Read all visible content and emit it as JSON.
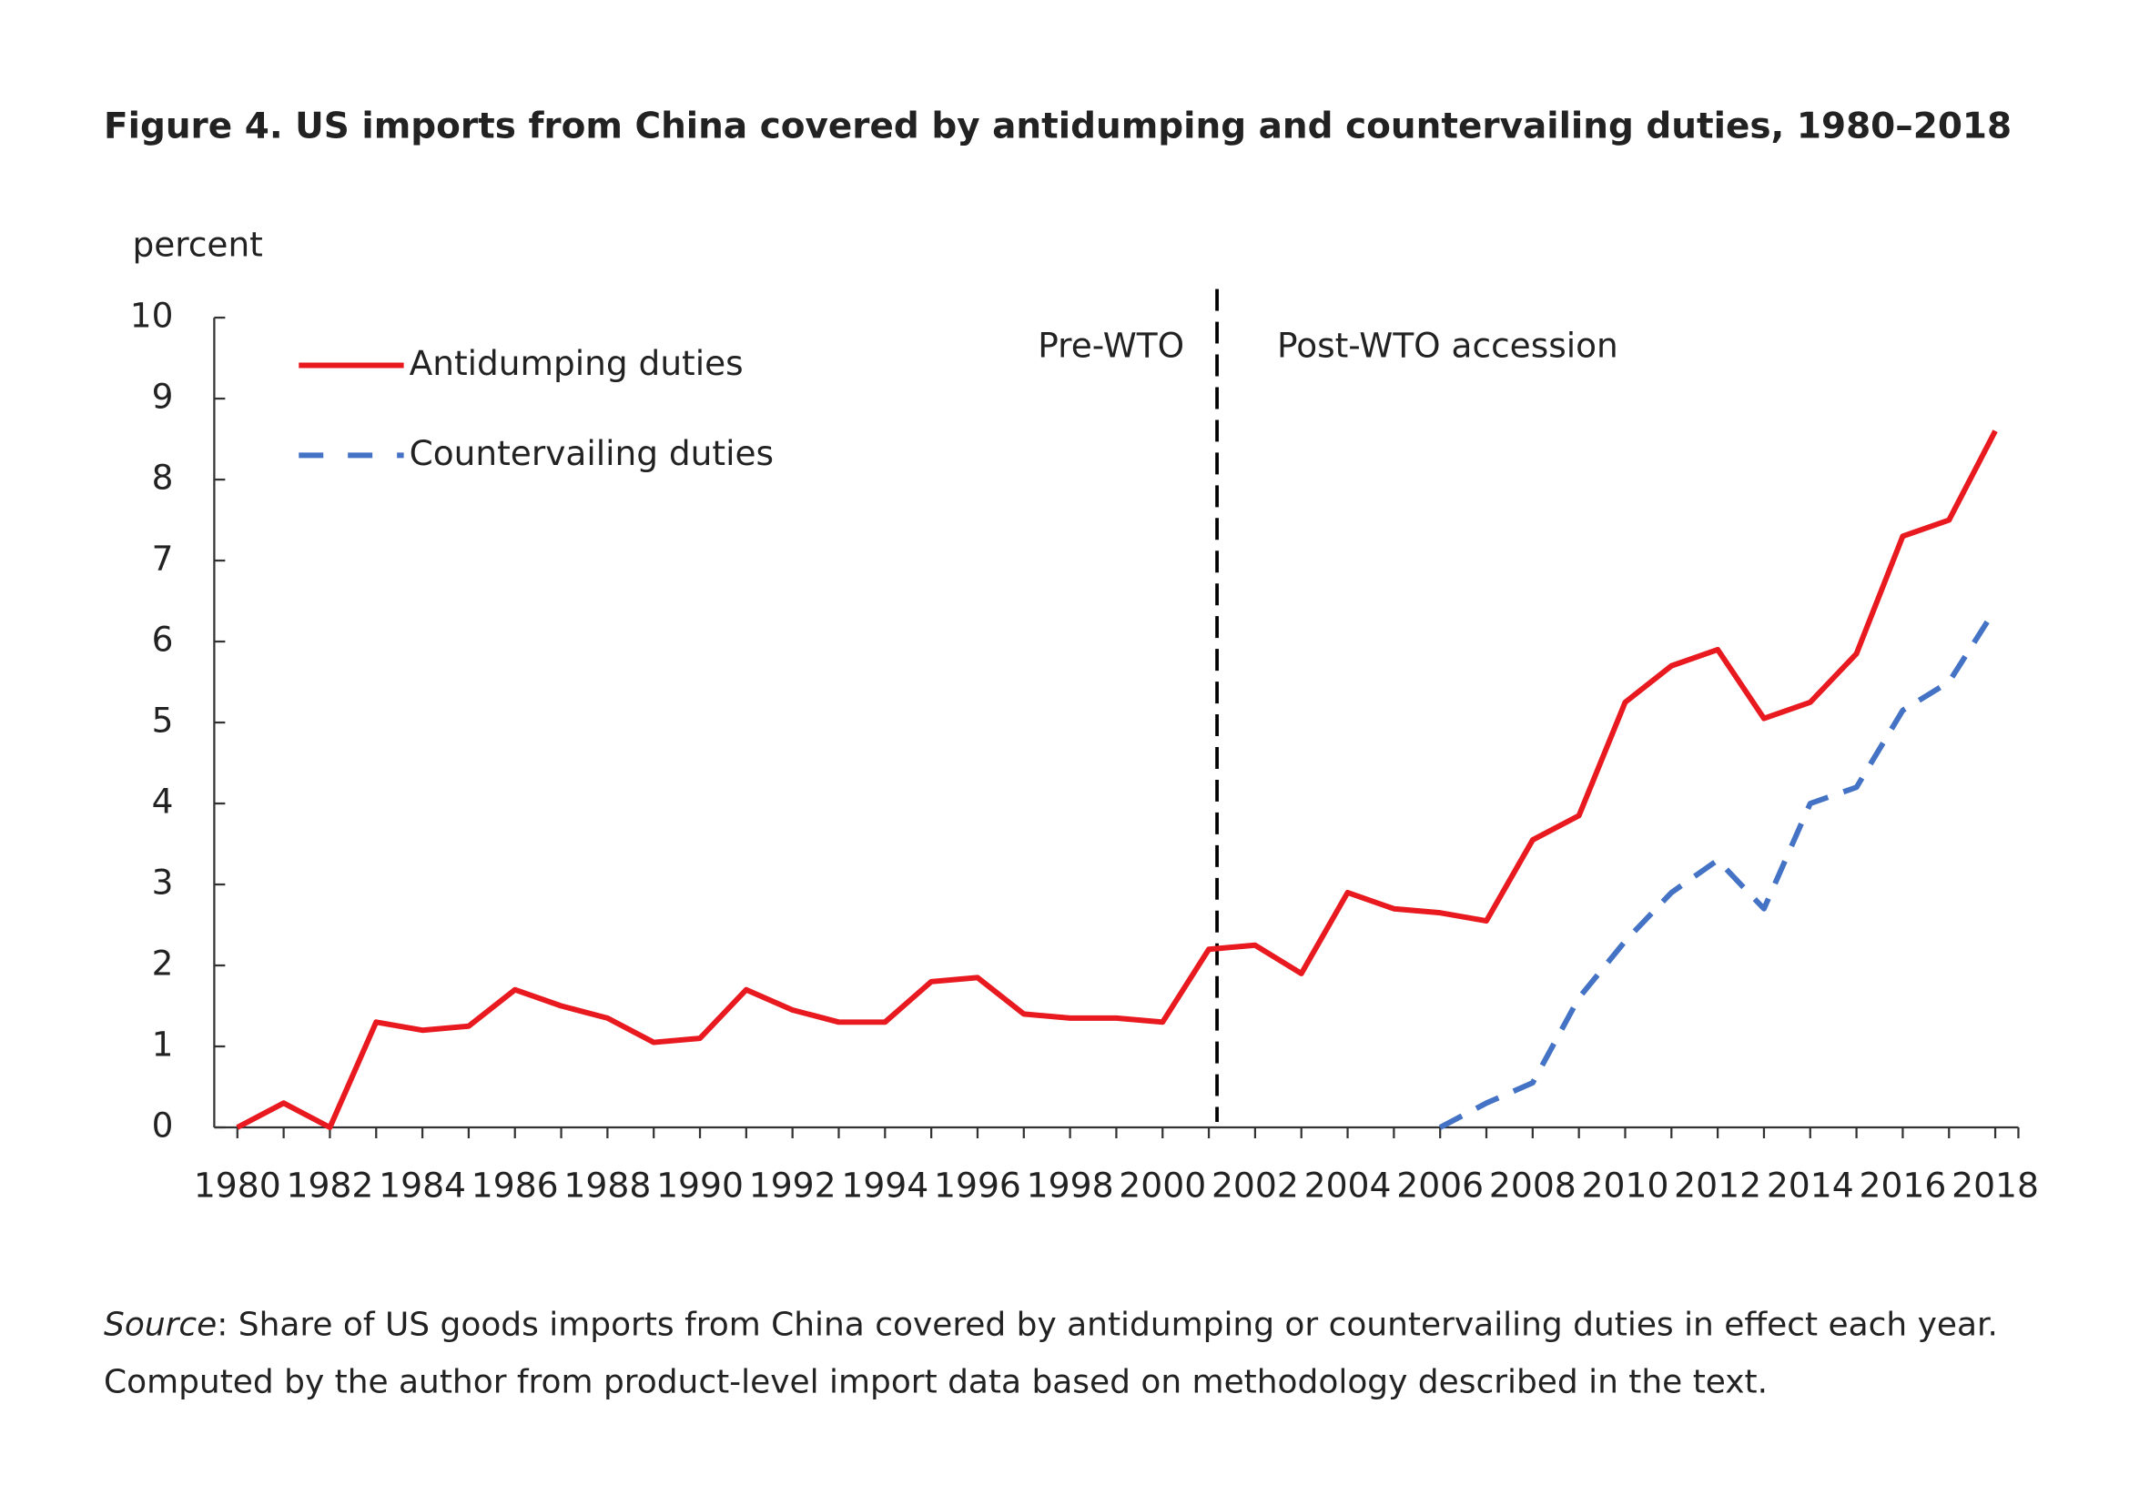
{
  "chart_data": {
    "type": "line",
    "title": "Figure 4. US imports from China covered by antidumping and countervailing duties, 1980–2018",
    "y_label": "percent",
    "x": [
      1980,
      1981,
      1982,
      1983,
      1984,
      1985,
      1986,
      1987,
      1988,
      1989,
      1990,
      1991,
      1992,
      1993,
      1994,
      1995,
      1996,
      1997,
      1998,
      1999,
      2000,
      2001,
      2002,
      2003,
      2004,
      2005,
      2006,
      2007,
      2008,
      2009,
      2010,
      2011,
      2012,
      2013,
      2014,
      2015,
      2016,
      2017,
      2018
    ],
    "series": [
      {
        "name": "Antidumping duties",
        "color": "#e8191f",
        "dash": false,
        "values": [
          0,
          0.3,
          0,
          1.3,
          1.2,
          1.25,
          1.7,
          1.5,
          1.35,
          1.05,
          1.1,
          1.7,
          1.45,
          1.3,
          1.3,
          1.8,
          1.85,
          1.4,
          1.35,
          1.35,
          1.3,
          2.2,
          2.25,
          1.9,
          2.9,
          2.7,
          2.65,
          2.55,
          3.55,
          3.85,
          5.25,
          5.7,
          5.9,
          5.05,
          5.25,
          5.85,
          7.3,
          7.5,
          8.6
        ]
      },
      {
        "name": "Countervailing duties",
        "color": "#4472c4",
        "dash": true,
        "values": [
          null,
          null,
          null,
          null,
          null,
          null,
          null,
          null,
          null,
          null,
          null,
          null,
          null,
          null,
          null,
          null,
          null,
          null,
          null,
          null,
          null,
          null,
          null,
          null,
          null,
          null,
          0,
          0.3,
          0.55,
          1.6,
          2.3,
          2.9,
          3.3,
          2.7,
          4.0,
          4.2,
          5.15,
          5.5,
          6.4
        ]
      }
    ],
    "xlim": [
      1979.5,
      2018.5
    ],
    "xticks": [
      1980,
      1982,
      1984,
      1986,
      1988,
      1990,
      1992,
      1994,
      1996,
      1998,
      2000,
      2002,
      2004,
      2006,
      2008,
      2010,
      2012,
      2014,
      2016,
      2018
    ],
    "ylim": [
      0,
      10
    ],
    "yticks": [
      0,
      1,
      2,
      3,
      4,
      5,
      6,
      7,
      8,
      9,
      10
    ],
    "legend": "upper-left",
    "divider": {
      "x": 2001,
      "left_label": "Pre-WTO",
      "right_label": "Post-WTO accession"
    },
    "source_label": "Source",
    "source_lines": [
      ": Share of US goods imports from China covered by antidumping or countervailing duties in effect each year.",
      "Computed by the author from product-level import data based on methodology described in the text."
    ]
  }
}
